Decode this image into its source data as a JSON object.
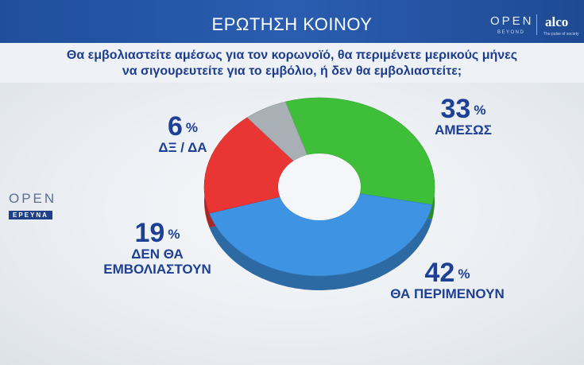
{
  "header": {
    "title": "ΕΡΩΤΗΣΗ ΚΟΙΝΟΥ",
    "logo_open": "OPEN",
    "logo_beyond": "BEYOND",
    "logo_alco": "alco",
    "logo_alco_sub": "The pulse of society"
  },
  "question": {
    "line1": "Θα εμβολιαστείτε αμέσως για τον κορωνοϊό, θα περιμένετε μερικούς μήνες",
    "line2": "να σιγουρευτείτε για το εμβόλιο, ή δεν θα εμβολιαστείτε;"
  },
  "side_logo": {
    "open": "OPEN",
    "ereuna": "ΕΡΕΥΝΑ"
  },
  "chart_data": {
    "type": "pie",
    "title": "",
    "unit": "%",
    "slices": [
      {
        "label": "ΑΜΕΣΩΣ",
        "value": 33,
        "color": "#3fbe3a"
      },
      {
        "label": "ΘΑ ΠΕΡΙΜΕΝΟΥΝ",
        "value": 42,
        "color": "#3e93e3"
      },
      {
        "label": "ΔΕΝ ΘΑ ΕΜΒΟΛΙΑΣΤΟΥΝ",
        "value": 19,
        "color": "#ea3535"
      },
      {
        "label": "ΔΞ / ΔΑ",
        "value": 6,
        "color": "#a8b0b6"
      }
    ],
    "labels_display": [
      {
        "value": "33",
        "unit": "%",
        "name": "ΑΜΕΣΩΣ"
      },
      {
        "value": "42",
        "unit": "%",
        "name": "ΘΑ ΠΕΡΙΜΕΝΟΥΝ"
      },
      {
        "value": "19",
        "unit": "%",
        "name": "ΔΕΝ ΘΑ ΕΜΒΟΛΙΑΣΤΟΥΝ"
      },
      {
        "value": "6",
        "unit": "%",
        "name": "ΔΞ / ΔΑ"
      }
    ]
  }
}
